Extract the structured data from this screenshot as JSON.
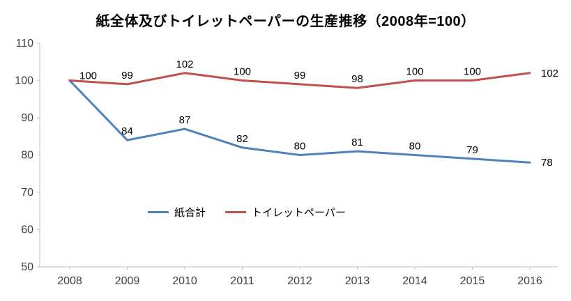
{
  "chart_data": {
    "type": "line",
    "title": "紙全体及びトイレットペーパーの生産推移（2008年=100）",
    "categories": [
      "2008",
      "2009",
      "2010",
      "2011",
      "2012",
      "2013",
      "2014",
      "2015",
      "2016"
    ],
    "series": [
      {
        "name": "紙合計",
        "color": "#4F81BD",
        "values": [
          100,
          84,
          87,
          82,
          80,
          81,
          80,
          79,
          78
        ]
      },
      {
        "name": "トイレットペーパー",
        "color": "#C0504D",
        "values": [
          100,
          99,
          102,
          100,
          99,
          98,
          100,
          100,
          102
        ]
      }
    ],
    "ylim": [
      50,
      110
    ],
    "yticks": [
      50,
      60,
      70,
      80,
      90,
      100,
      110
    ],
    "grid": false,
    "data_labels": true,
    "legend_position": "inside-center",
    "axis_color": "#BFBFBF",
    "label_color": "#000000"
  }
}
